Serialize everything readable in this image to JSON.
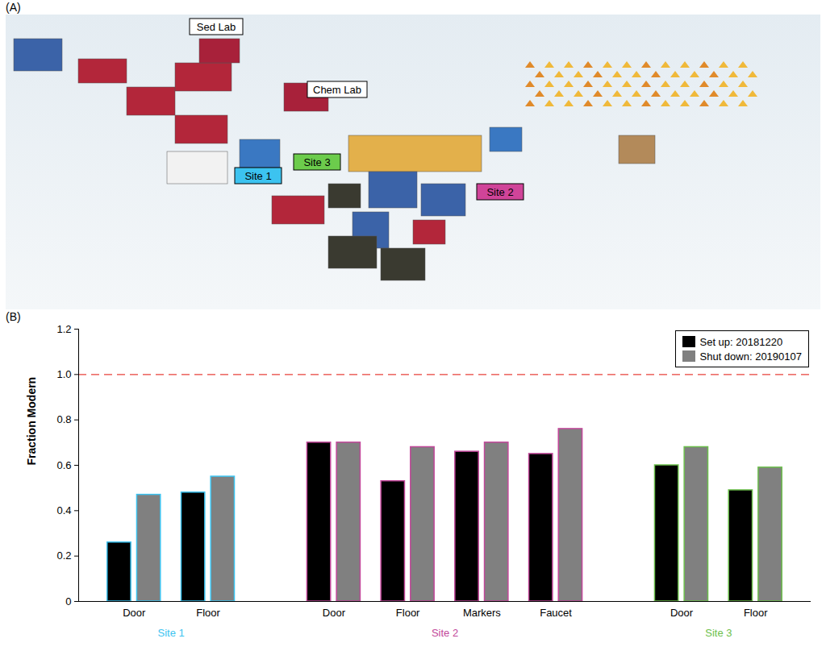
{
  "photo": {
    "panel_label": "(A)",
    "labels": [
      {
        "text": "Sed Lab",
        "color": "#ffffff"
      },
      {
        "text": "Chem Lab",
        "color": "#ffffff"
      },
      {
        "text": "Site 1",
        "color": "#3cc3f0"
      },
      {
        "text": "Site 3",
        "color": "#6ccc4c"
      },
      {
        "text": "Site 2",
        "color": "#d04499"
      }
    ]
  },
  "chart_data": {
    "type": "bar",
    "panel_label": "(B)",
    "ylabel": "Fraction Modern",
    "groups": [
      {
        "name": "Site 1",
        "color": "#3cc3f0",
        "categories": [
          "Door",
          "Floor"
        ]
      },
      {
        "name": "Site 2",
        "color": "#c2479a",
        "categories": [
          "Door",
          "Floor",
          "Markers",
          "Faucet"
        ]
      },
      {
        "name": "Site 3",
        "color": "#6cbf4c",
        "categories": [
          "Door",
          "Floor"
        ]
      }
    ],
    "series": [
      {
        "name": "Set up: 20181220",
        "color": "#000000",
        "values": [
          0.26,
          0.48,
          0.7,
          0.53,
          0.66,
          0.65,
          0.6,
          0.49
        ]
      },
      {
        "name": "Shut down: 20190107",
        "color": "#808080",
        "values": [
          0.47,
          0.55,
          0.7,
          0.68,
          0.7,
          0.76,
          0.68,
          0.59
        ]
      }
    ],
    "reference_line": {
      "value": 1,
      "color": "#e8413a",
      "line_style": "dashed"
    },
    "ylim": [
      0,
      1.2
    ],
    "yticks": [
      0,
      0.2,
      0.4,
      0.6,
      0.8,
      {
        "value": 1,
        "label": "1.0"
      },
      1.2
    ],
    "legend": "top-right",
    "grid": false
  }
}
